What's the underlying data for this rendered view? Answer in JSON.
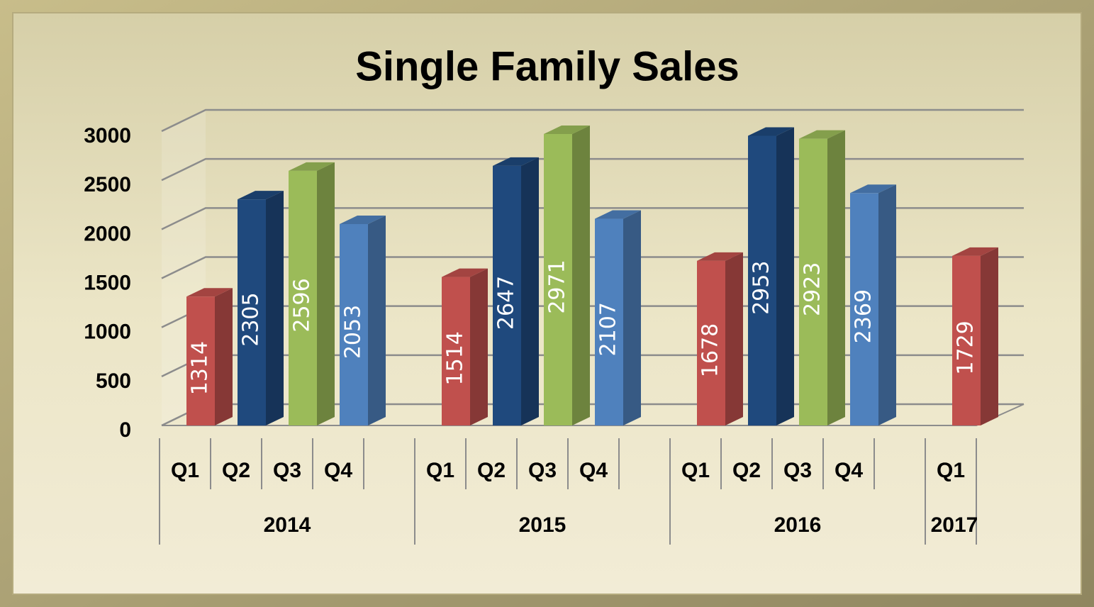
{
  "chart_data": {
    "type": "bar3d",
    "title": "Single Family Sales",
    "groups": [
      {
        "name": "2014",
        "categories": [
          "Q1",
          "Q2",
          "Q3",
          "Q4",
          null
        ],
        "values": [
          1314,
          2305,
          2596,
          2053,
          null
        ]
      },
      {
        "name": "2015",
        "categories": [
          "Q1",
          "Q2",
          "Q3",
          "Q4",
          null
        ],
        "values": [
          1514,
          2647,
          2971,
          2107,
          null
        ]
      },
      {
        "name": "2016",
        "categories": [
          "Q1",
          "Q2",
          "Q3",
          "Q4",
          null
        ],
        "values": [
          1678,
          2953,
          2923,
          2369,
          null
        ]
      },
      {
        "name": "2017",
        "categories": [
          "Q1"
        ],
        "values": [
          1729
        ]
      }
    ],
    "colors": [
      "#c0504d",
      "#1f497d",
      "#9bbb59",
      "#4f81bd"
    ],
    "ylim": [
      0,
      3000
    ],
    "yticks": [
      0,
      500,
      1000,
      1500,
      2000,
      2500,
      3000
    ],
    "grid": true
  }
}
